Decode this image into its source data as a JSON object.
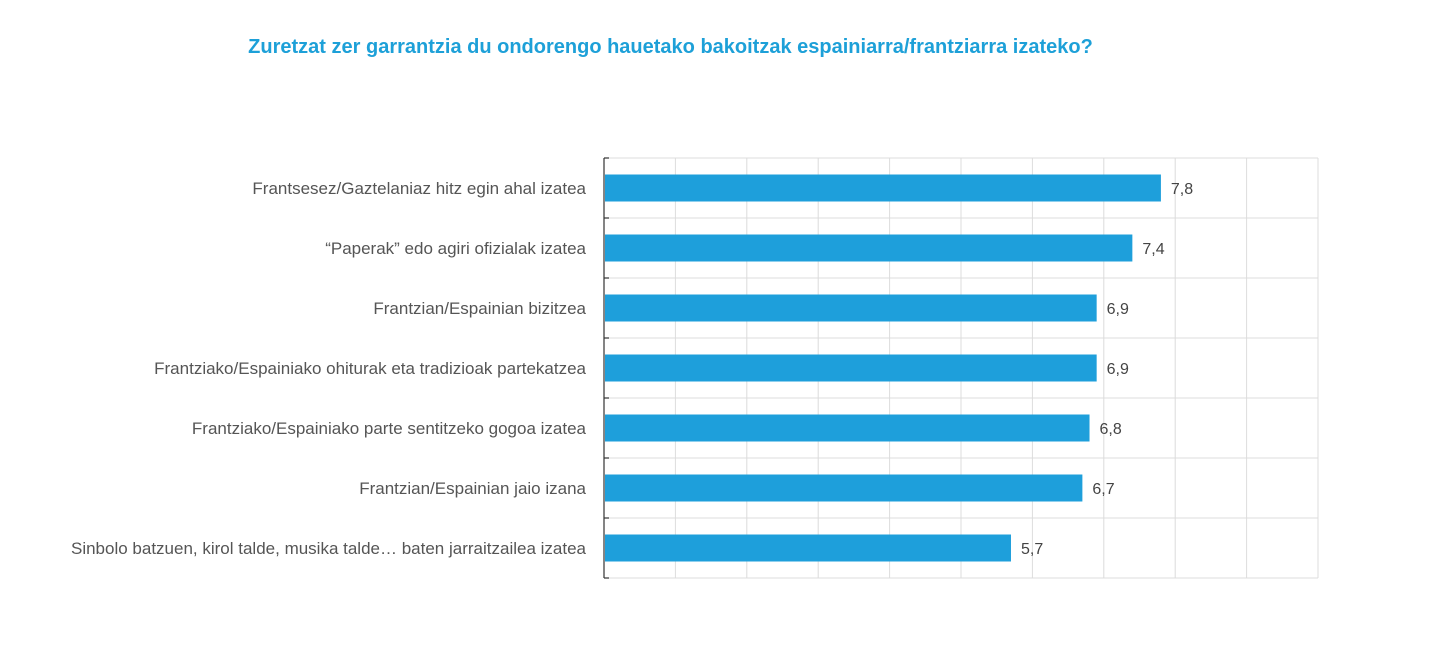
{
  "chart_data": {
    "type": "bar",
    "orientation": "horizontal",
    "title": "Zuretzat zer garrantzia du ondorengo hauetako bakoitzak espainiarra/frantziarra izateko?",
    "categories": [
      "Frantsesez/Gaztelaniaz hitz egin ahal izatea",
      "“Paperak” edo agiri ofizialak izatea",
      "Frantzian/Espainian bizitzea",
      "Frantziako/Espainiako ohiturak eta tradizioak partekatzea",
      "Frantziako/Espainiako parte sentitzeko gogoa izatea",
      "Frantzian/Espainian jaio izana",
      "Sinbolo batzuen, kirol talde, musika talde… baten jarraitzailea izatea"
    ],
    "values": [
      7.8,
      7.4,
      6.9,
      6.9,
      6.8,
      6.7,
      5.7
    ],
    "value_labels": [
      "7,8",
      "7,4",
      "6,9",
      "6,9",
      "6,8",
      "6,7",
      "5,7"
    ],
    "xlim": [
      0,
      10
    ],
    "grid": true,
    "bar_color": "#1e9fdb",
    "title_color": "#1da0d8"
  }
}
